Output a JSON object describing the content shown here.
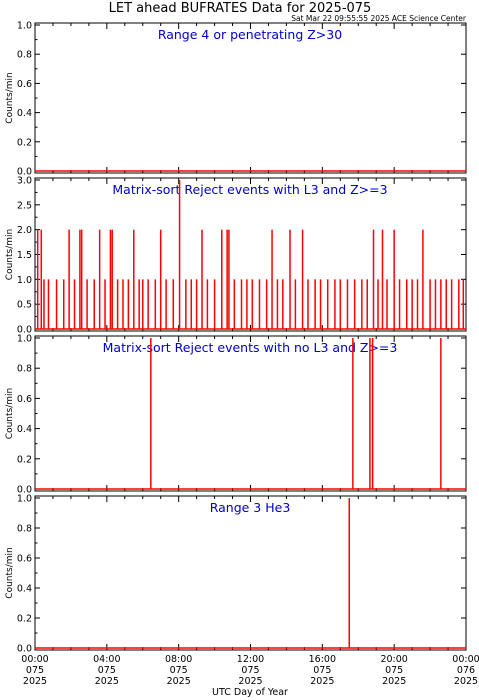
{
  "title": "LET ahead BUFRATES Data for 2025-075",
  "timestamp": "Sat Mar 22 09:55:55 2025 ACE Science Center",
  "xlabel": "UTC Day of Year",
  "x_ticks": [
    {
      "time": "00:00",
      "doy": "075",
      "year": "2025"
    },
    {
      "time": "04:00",
      "doy": "075",
      "year": "2025"
    },
    {
      "time": "08:00",
      "doy": "075",
      "year": "2025"
    },
    {
      "time": "12:00",
      "doy": "075",
      "year": "2025"
    },
    {
      "time": "16:00",
      "doy": "075",
      "year": "2025"
    },
    {
      "time": "20:00",
      "doy": "075",
      "year": "2025"
    },
    {
      "time": "00:00",
      "doy": "076",
      "year": "2025"
    }
  ],
  "colors": {
    "series": "#ff0000",
    "panel_title": "#0000cc",
    "axes": "#000000"
  },
  "chart_data": [
    {
      "type": "line",
      "title": "Range 4 or  penetrating Z>30",
      "ylabel": "Counts/min",
      "xlim": [
        0,
        24
      ],
      "ylim": [
        0,
        1
      ],
      "yticks": [
        "0.0",
        "0.2",
        "0.4",
        "0.6",
        "0.8",
        "1.0"
      ],
      "series": [
        {
          "x": [
            0,
            24
          ],
          "values": [
            0,
            0
          ]
        }
      ]
    },
    {
      "type": "line",
      "title": "Matrix-sort Reject events with L3 and Z>=3",
      "ylabel": "Counts/min",
      "xlim": [
        0,
        24
      ],
      "ylim": [
        0,
        3
      ],
      "yticks": [
        "0.0",
        "0.5",
        "1.0",
        "1.5",
        "2.0",
        "2.5",
        "3.0"
      ],
      "series": [
        {
          "spikes": [
            [
              0.15,
              2
            ],
            [
              0.35,
              2
            ],
            [
              0.5,
              1
            ],
            [
              0.75,
              1
            ],
            [
              1.2,
              1
            ],
            [
              1.6,
              1
            ],
            [
              1.9,
              2
            ],
            [
              2.2,
              1
            ],
            [
              2.5,
              2
            ],
            [
              2.6,
              2
            ],
            [
              2.9,
              1
            ],
            [
              3.3,
              1
            ],
            [
              3.6,
              2
            ],
            [
              3.9,
              1
            ],
            [
              4.2,
              2
            ],
            [
              4.3,
              2
            ],
            [
              4.6,
              1
            ],
            [
              4.9,
              1
            ],
            [
              5.2,
              1
            ],
            [
              5.5,
              2
            ],
            [
              5.8,
              1
            ],
            [
              6.0,
              1
            ],
            [
              6.3,
              1
            ],
            [
              6.7,
              1
            ],
            [
              7.0,
              2
            ],
            [
              7.3,
              1
            ],
            [
              7.7,
              1
            ],
            [
              8.05,
              3
            ],
            [
              8.4,
              1
            ],
            [
              8.7,
              1
            ],
            [
              9.0,
              1
            ],
            [
              9.3,
              2
            ],
            [
              9.6,
              1
            ],
            [
              10.0,
              1
            ],
            [
              10.4,
              2
            ],
            [
              10.7,
              2
            ],
            [
              10.8,
              2
            ],
            [
              11.1,
              1
            ],
            [
              11.5,
              1
            ],
            [
              11.8,
              1
            ],
            [
              12.1,
              1
            ],
            [
              12.5,
              1
            ],
            [
              12.9,
              1
            ],
            [
              13.2,
              2
            ],
            [
              13.5,
              1
            ],
            [
              13.8,
              1
            ],
            [
              14.2,
              2
            ],
            [
              14.5,
              1
            ],
            [
              14.9,
              2
            ],
            [
              15.2,
              1
            ],
            [
              15.6,
              1
            ],
            [
              15.9,
              1
            ],
            [
              16.3,
              1
            ],
            [
              16.7,
              1
            ],
            [
              17.0,
              1
            ],
            [
              17.4,
              1
            ],
            [
              17.8,
              1
            ],
            [
              18.2,
              1
            ],
            [
              18.5,
              1
            ],
            [
              18.85,
              2
            ],
            [
              19.1,
              1
            ],
            [
              19.35,
              2
            ],
            [
              19.6,
              1
            ],
            [
              20.0,
              2
            ],
            [
              20.3,
              1
            ],
            [
              20.7,
              1
            ],
            [
              21.0,
              1
            ],
            [
              21.3,
              1
            ],
            [
              21.6,
              2
            ],
            [
              22.0,
              1
            ],
            [
              22.3,
              1
            ],
            [
              22.6,
              1
            ],
            [
              22.9,
              1
            ],
            [
              23.2,
              1
            ],
            [
              23.6,
              1
            ],
            [
              23.85,
              1
            ]
          ]
        }
      ]
    },
    {
      "type": "line",
      "title": "Matrix-sort Reject events with no L3 and Z>=3",
      "ylabel": "Counts/min",
      "xlim": [
        0,
        24
      ],
      "ylim": [
        0,
        1
      ],
      "yticks": [
        "0.0",
        "0.2",
        "0.4",
        "0.6",
        "0.8",
        "1.0"
      ],
      "series": [
        {
          "spikes": [
            [
              6.45,
              1
            ],
            [
              17.7,
              1
            ],
            [
              18.65,
              1
            ],
            [
              18.8,
              1
            ],
            [
              22.6,
              1
            ]
          ]
        }
      ]
    },
    {
      "type": "line",
      "title": "Range 3 He3",
      "ylabel": "Counts/min",
      "xlim": [
        0,
        24
      ],
      "ylim": [
        0,
        1
      ],
      "yticks": [
        "0.0",
        "0.2",
        "0.4",
        "0.6",
        "0.8",
        "1.0"
      ],
      "series": [
        {
          "spikes": [
            [
              17.5,
              1
            ]
          ]
        }
      ]
    }
  ]
}
